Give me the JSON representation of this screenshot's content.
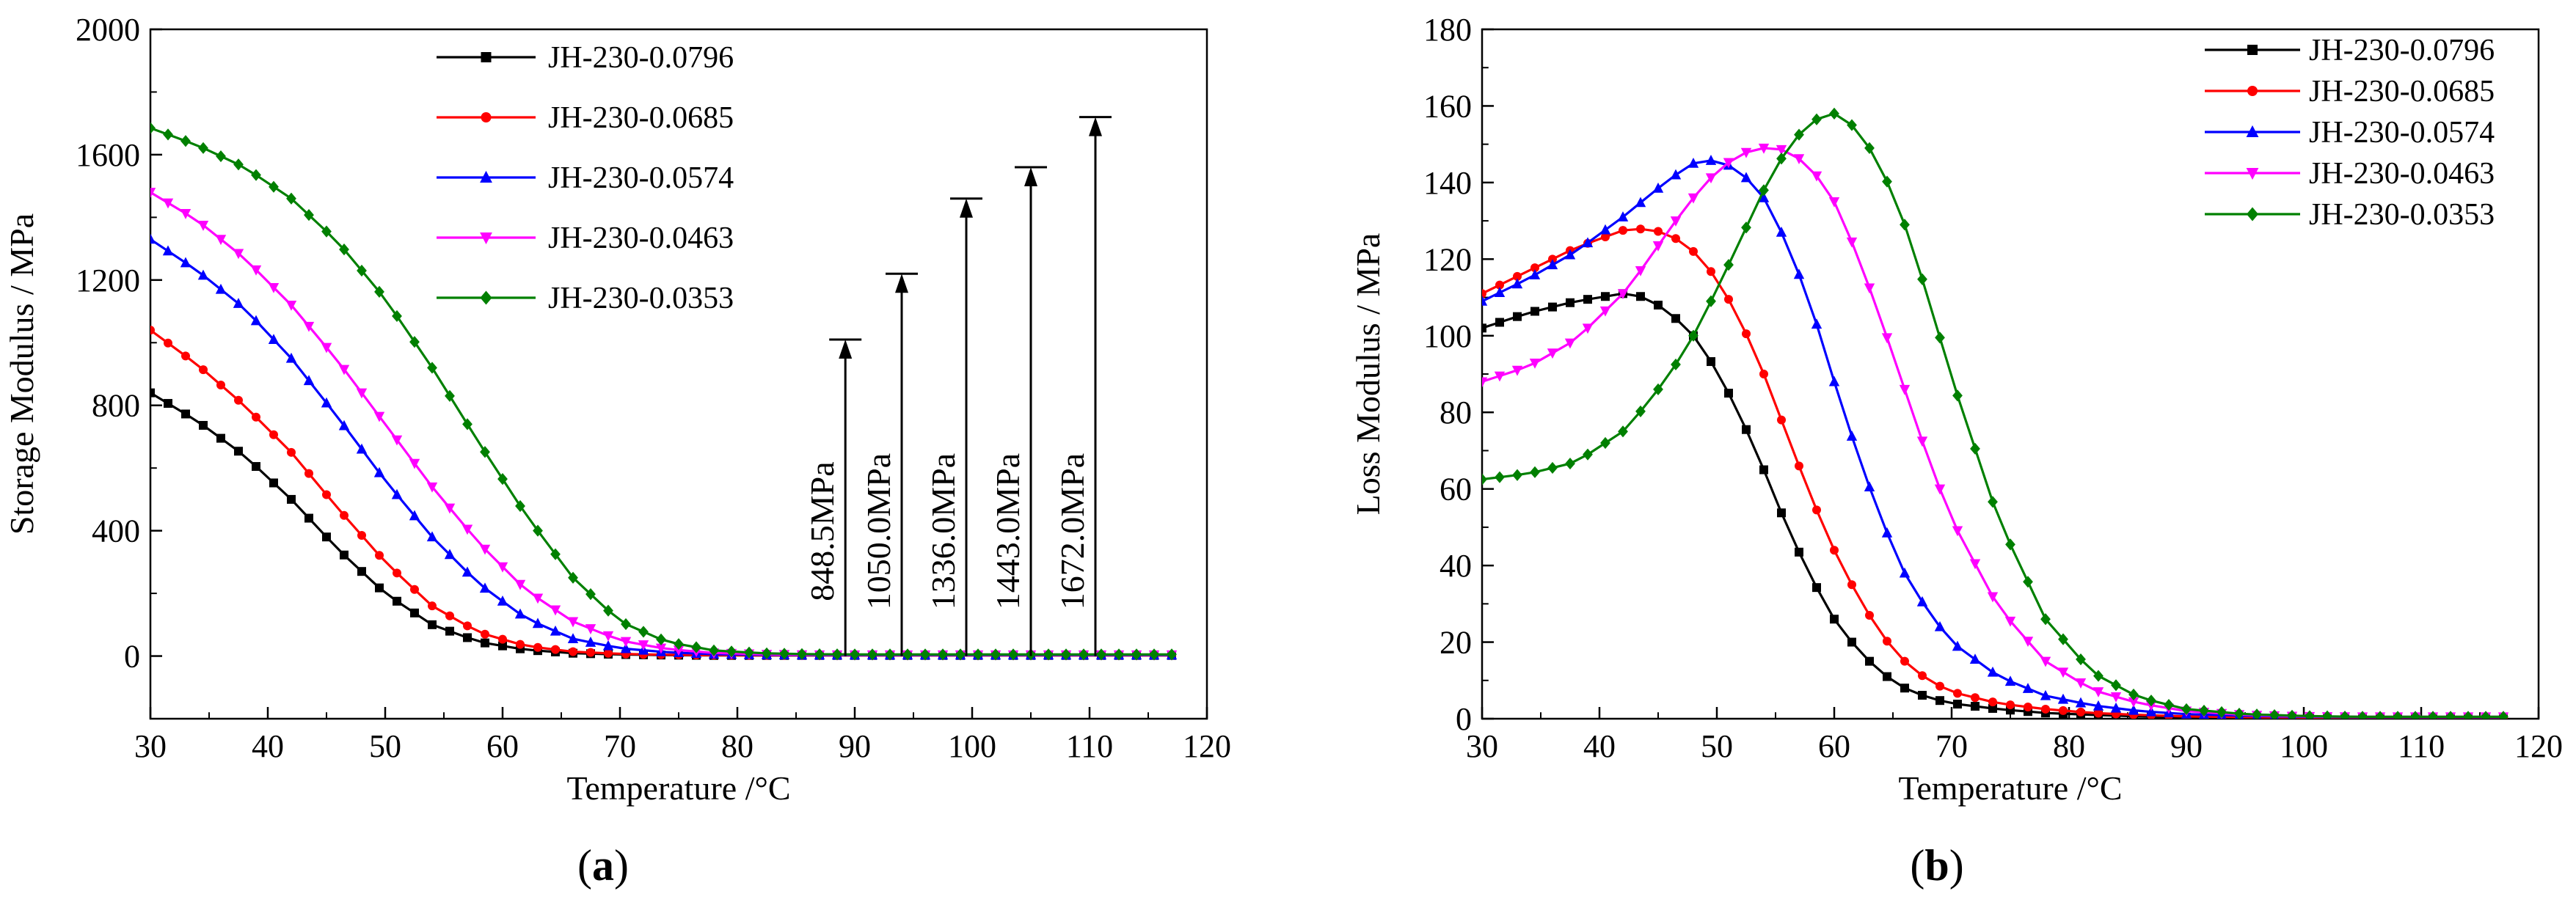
{
  "chart_data": [
    {
      "type": "line",
      "panel_label": "a",
      "xlabel": "Temperature /°C",
      "ylabel": "Storage Modulus / MPa",
      "xlim": [
        30,
        120
      ],
      "ylim": [
        -200,
        2000
      ],
      "xticks": [
        30,
        40,
        50,
        60,
        70,
        80,
        90,
        100,
        110,
        120
      ],
      "yticks": [
        0,
        400,
        800,
        1200,
        1600,
        2000
      ],
      "grid": false,
      "legend_position": "top-center",
      "series": [
        {
          "name": "JH-230-0.0796",
          "color": "#000000",
          "marker": "square",
          "x": [
            30,
            34,
            38,
            42,
            46,
            50,
            54,
            58,
            62,
            66,
            70,
            74,
            78,
            82,
            86,
            90,
            95,
            100,
            105,
            110,
            115,
            118
          ],
          "y": [
            840,
            750,
            640,
            500,
            340,
            200,
            100,
            45,
            20,
            9,
            5,
            3,
            2,
            2,
            2,
            2,
            2,
            2,
            2,
            2,
            2,
            2
          ]
        },
        {
          "name": "JH-230-0.0685",
          "color": "#ff0000",
          "marker": "circle",
          "x": [
            30,
            34,
            38,
            42,
            46,
            50,
            54,
            58,
            62,
            66,
            70,
            74,
            78,
            82,
            86,
            90,
            95,
            100,
            105,
            110,
            115,
            118
          ],
          "y": [
            1040,
            930,
            800,
            650,
            470,
            300,
            160,
            75,
            32,
            14,
            7,
            4,
            3,
            2,
            2,
            2,
            2,
            2,
            2,
            2,
            2,
            2
          ]
        },
        {
          "name": "JH-230-0.0574",
          "color": "#0000ff",
          "marker": "triangle-up",
          "x": [
            30,
            34,
            38,
            42,
            46,
            50,
            54,
            58,
            62,
            66,
            70,
            74,
            78,
            82,
            86,
            90,
            95,
            100,
            105,
            110,
            115,
            118
          ],
          "y": [
            1330,
            1230,
            1110,
            950,
            760,
            560,
            380,
            230,
            120,
            55,
            25,
            12,
            6,
            4,
            3,
            3,
            3,
            3,
            3,
            3,
            3,
            3
          ]
        },
        {
          "name": "JH-230-0.0463",
          "color": "#ff00ff",
          "marker": "triangle-down",
          "x": [
            30,
            34,
            38,
            42,
            46,
            50,
            54,
            58,
            62,
            66,
            70,
            74,
            78,
            82,
            86,
            90,
            95,
            100,
            105,
            110,
            115,
            118
          ],
          "y": [
            1480,
            1390,
            1270,
            1120,
            940,
            740,
            540,
            360,
            210,
            110,
            50,
            22,
            10,
            6,
            4,
            4,
            4,
            4,
            4,
            4,
            4,
            4
          ]
        },
        {
          "name": "JH-230-0.0353",
          "color": "#008000",
          "marker": "diamond",
          "x": [
            30,
            34,
            38,
            42,
            46,
            50,
            54,
            58,
            62,
            66,
            70,
            74,
            78,
            82,
            86,
            90,
            95,
            100,
            105,
            110,
            115,
            118
          ],
          "y": [
            1685,
            1630,
            1560,
            1460,
            1320,
            1140,
            920,
            680,
            450,
            250,
            110,
            45,
            18,
            9,
            6,
            5,
            5,
            5,
            5,
            5,
            5,
            5
          ]
        }
      ],
      "annotations": [
        {
          "text": "848.5MPa",
          "x": 89.2,
          "y_top": 1010
        },
        {
          "text": "1050.0MPa",
          "x": 94.0,
          "y_top": 1220
        },
        {
          "text": "1336.0MPa",
          "x": 99.5,
          "y_top": 1460
        },
        {
          "text": "1443.0MPa",
          "x": 105.0,
          "y_top": 1560
        },
        {
          "text": "1672.0MPa",
          "x": 110.5,
          "y_top": 1720
        }
      ]
    },
    {
      "type": "line",
      "panel_label": "b",
      "xlabel": "Temperature /°C",
      "ylabel": "Loss Modulus / MPa",
      "xlim": [
        30,
        120
      ],
      "ylim": [
        0,
        180
      ],
      "xticks": [
        30,
        40,
        50,
        60,
        70,
        80,
        90,
        100,
        110,
        120
      ],
      "yticks": [
        0,
        20,
        40,
        60,
        80,
        100,
        120,
        140,
        160,
        180
      ],
      "grid": false,
      "legend_position": "top-right",
      "series": [
        {
          "name": "JH-230-0.0796",
          "color": "#000000",
          "marker": "square",
          "x": [
            30,
            34,
            38,
            42,
            44,
            46,
            48,
            50,
            52,
            54,
            56,
            58,
            60,
            62,
            64,
            66,
            68,
            70,
            74,
            78,
            82,
            86,
            90,
            95,
            100,
            105,
            110,
            115,
            118
          ],
          "y": [
            102,
            106,
            109,
            111,
            110,
            106,
            100,
            91,
            79,
            65,
            50,
            37,
            26,
            18,
            12,
            8,
            5.5,
            4,
            2.5,
            1.5,
            1,
            0.6,
            0.4,
            0.3,
            0.2,
            0.2,
            0.2,
            0.2,
            0.2
          ]
        },
        {
          "name": "JH-230-0.0685",
          "color": "#ff0000",
          "marker": "circle",
          "x": [
            30,
            34,
            38,
            42,
            44,
            46,
            48,
            50,
            52,
            54,
            56,
            58,
            60,
            62,
            64,
            66,
            68,
            70,
            74,
            78,
            82,
            86,
            90,
            95,
            100,
            105,
            110,
            115,
            118
          ],
          "y": [
            111,
            117,
            123,
            127.5,
            128,
            126.5,
            122,
            115,
            104,
            90,
            74,
            58,
            44,
            32,
            22,
            15,
            10,
            7,
            4,
            2.5,
            1.5,
            1,
            0.6,
            0.4,
            0.3,
            0.3,
            0.3,
            0.3,
            0.3
          ]
        },
        {
          "name": "JH-230-0.0574",
          "color": "#0000ff",
          "marker": "triangle-up",
          "x": [
            30,
            34,
            38,
            42,
            44,
            46,
            48,
            50,
            52,
            54,
            56,
            58,
            60,
            62,
            64,
            66,
            68,
            70,
            74,
            78,
            82,
            86,
            90,
            95,
            100,
            105,
            110,
            115,
            118
          ],
          "y": [
            109,
            115,
            122,
            131,
            136,
            141,
            145,
            146,
            143,
            136,
            124,
            108,
            88,
            69,
            52,
            38,
            28,
            20,
            11,
            6,
            3.5,
            2,
            1.2,
            0.8,
            0.5,
            0.4,
            0.4,
            0.4,
            0.4
          ]
        },
        {
          "name": "JH-230-0.0463",
          "color": "#ff00ff",
          "marker": "triangle-down",
          "x": [
            30,
            34,
            38,
            42,
            44,
            46,
            48,
            50,
            52,
            54,
            56,
            58,
            60,
            62,
            64,
            66,
            68,
            70,
            74,
            78,
            82,
            86,
            90,
            95,
            100,
            105,
            110,
            115,
            118
          ],
          "y": [
            88,
            92,
            99,
            111,
            119,
            128,
            136,
            143,
            147.5,
            149,
            148.5,
            144,
            135,
            121,
            104,
            86,
            68,
            52,
            29,
            15,
            7.5,
            4,
            2,
            1,
            0.6,
            0.5,
            0.5,
            0.5,
            0.5
          ]
        },
        {
          "name": "JH-230-0.0353",
          "color": "#008000",
          "marker": "diamond",
          "x": [
            30,
            34,
            38,
            42,
            44,
            46,
            48,
            50,
            52,
            54,
            56,
            58,
            60,
            62,
            64,
            66,
            68,
            70,
            74,
            78,
            82,
            86,
            90,
            95,
            100,
            105,
            110,
            115,
            118
          ],
          "y": [
            62.5,
            64,
            67,
            75,
            82,
            90,
            100,
            112,
            125,
            138,
            149,
            156,
            158,
            154,
            144,
            129,
            110,
            89,
            52,
            26,
            12,
            5.5,
            2.5,
            1.2,
            0.7,
            0.5,
            0.5,
            0.5,
            0.5
          ]
        }
      ]
    }
  ]
}
